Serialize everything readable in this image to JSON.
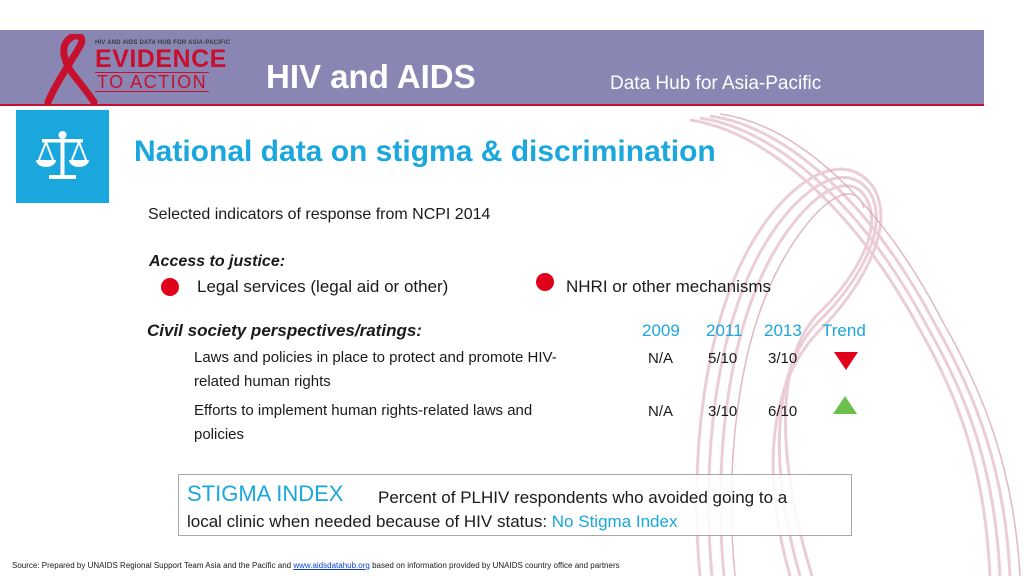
{
  "header": {
    "logo_small": "HIV AND AIDS DATA HUB FOR ASIA-PACIFIC",
    "logo_evidence": "EVIDENCE",
    "logo_to_action": "TO ACTION",
    "title": "HIV and AIDS",
    "subtitle": "Data Hub for Asia-Pacific"
  },
  "icon": {
    "name": "scales-of-justice-icon"
  },
  "page_title": "National data on stigma & discrimination",
  "subtitle": "Selected indicators of response from NCPI 2014",
  "access": {
    "heading": "Access to justice:",
    "legal_label": "Legal services (legal aid or other)",
    "nhri_label": "NHRI or other mechanisms",
    "status_color": "#e0001b"
  },
  "civil": {
    "heading": "Civil society perspectives/ratings:",
    "columns": [
      "2009",
      "2011",
      "2013",
      "Trend"
    ],
    "rows": [
      {
        "label_line1": "Laws and policies in place to protect and promote HIV-",
        "label_line2": "related human rights",
        "v2009": "N/A",
        "v2011": "5/10",
        "v2013": "3/10",
        "trend": "down"
      },
      {
        "label_line1": "Efforts to implement human rights-related laws and",
        "label_line2": "policies",
        "v2009": "N/A",
        "v2011": "3/10",
        "v2013": "6/10",
        "trend": "up"
      }
    ]
  },
  "stigma": {
    "heading": "STIGMA INDEX",
    "text_line1": "Percent of PLHIV respondents who avoided going to a",
    "text_line2": "local clinic when needed because of HIV status:",
    "value": "No Stigma Index"
  },
  "source": {
    "prefix": "Source: Prepared by UNAIDS Regional Support Team Asia and the Pacific and ",
    "link": "www.aidsdatahub.org",
    "suffix": " based on information provided by UNAIDS country office and partners"
  },
  "colors": {
    "accent": "#1aa7de",
    "header_bg": "#8a86b4",
    "red": "#e0001b",
    "green": "#6cbf4a"
  }
}
